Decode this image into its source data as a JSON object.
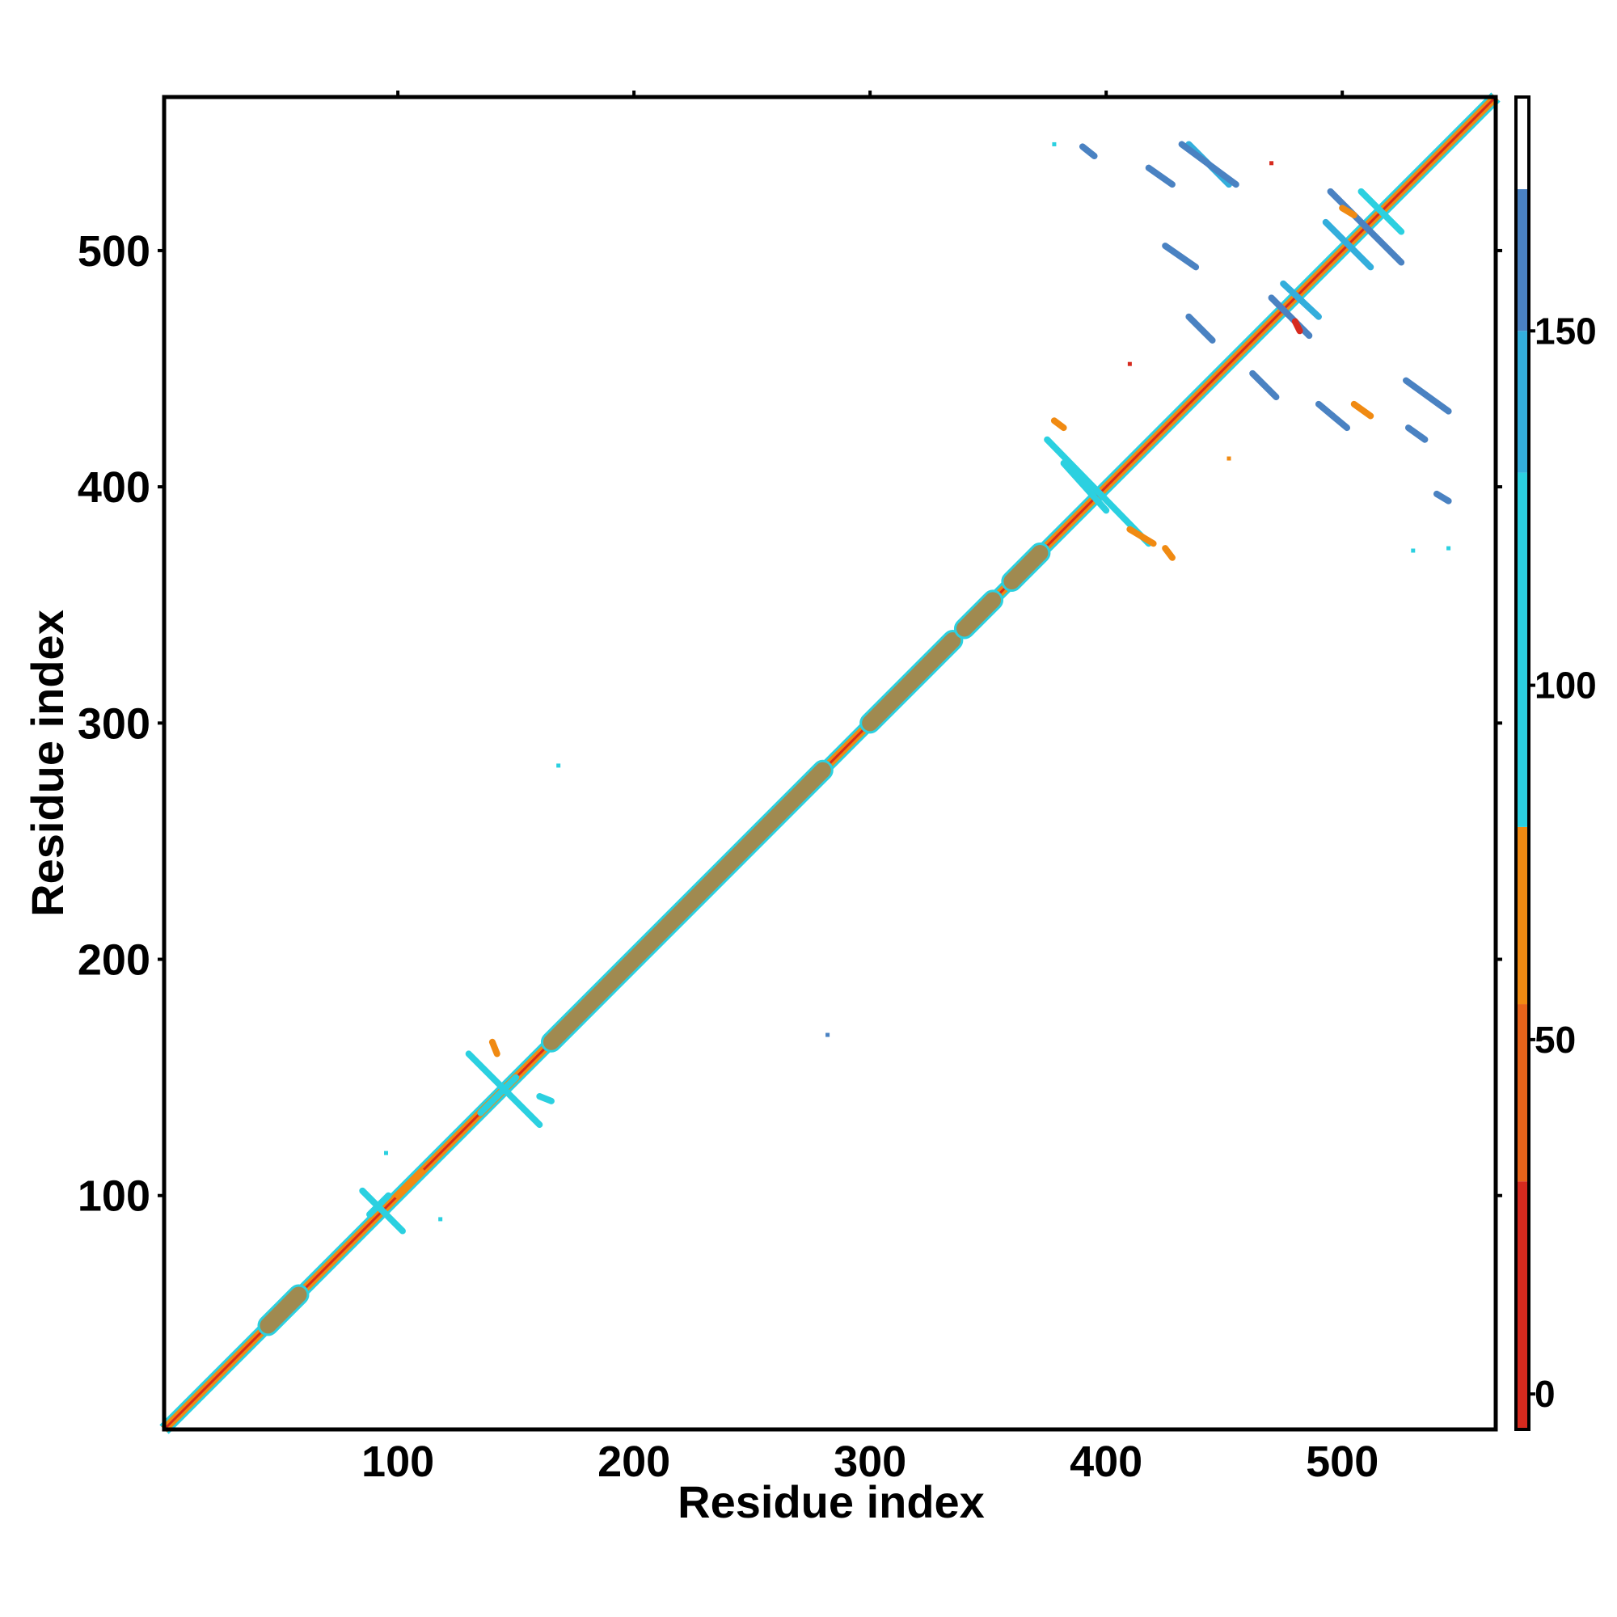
{
  "chart_data": {
    "type": "heatmap",
    "xlabel": "Residue index",
    "ylabel": "Residue index",
    "xlim": [
      1,
      565
    ],
    "ylim": [
      1,
      565
    ],
    "x_ticks": [
      100,
      200,
      300,
      400,
      500
    ],
    "y_ticks": [
      100,
      200,
      300,
      400,
      500
    ],
    "grid": false,
    "colorbar": {
      "range": [
        -5,
        183
      ],
      "ticks": [
        0,
        50,
        100,
        150
      ],
      "bands": [
        {
          "from": -5,
          "to": 30,
          "color": "#d62a1e"
        },
        {
          "from": 30,
          "to": 55,
          "color": "#e8641a"
        },
        {
          "from": 55,
          "to": 80,
          "color": "#f08a12"
        },
        {
          "from": 80,
          "to": 130,
          "color": "#2bd0e0"
        },
        {
          "from": 130,
          "to": 150,
          "color": "#33aedc"
        },
        {
          "from": 150,
          "to": 170,
          "color": "#4a82c2"
        },
        {
          "from": 170,
          "to": 183,
          "color": "#ffffff"
        }
      ]
    },
    "diagonal_band": {
      "from": 1,
      "to": 565,
      "color": "#f08a12",
      "edge_color": "#2bd0e0",
      "core_color": "#d62a1e"
    },
    "dense_helix_segments": [
      {
        "from": 45,
        "to": 58,
        "color": "#a08a50"
      },
      {
        "from": 165,
        "to": 280,
        "color": "#a08a50"
      },
      {
        "from": 300,
        "to": 335,
        "color": "#a08a50"
      },
      {
        "from": 340,
        "to": 352,
        "color": "#a08a50"
      },
      {
        "from": 360,
        "to": 372,
        "color": "#a08a50"
      }
    ],
    "contact_segments": [
      {
        "x1": 85,
        "y1": 102,
        "x2": 102,
        "y2": 85,
        "color": "#2bd0e0"
      },
      {
        "x1": 88,
        "y1": 92,
        "x2": 96,
        "y2": 100,
        "color": "#2bd0e0"
      },
      {
        "x1": 100,
        "y1": 100,
        "x2": 110,
        "y2": 110,
        "color": "#f08a12"
      },
      {
        "x1": 130,
        "y1": 160,
        "x2": 160,
        "y2": 130,
        "color": "#2bd0e0"
      },
      {
        "x1": 135,
        "y1": 135,
        "x2": 150,
        "y2": 150,
        "color": "#2bd0e0"
      },
      {
        "x1": 140,
        "y1": 165,
        "x2": 142,
        "y2": 160,
        "color": "#f08a12"
      },
      {
        "x1": 160,
        "y1": 142,
        "x2": 165,
        "y2": 140,
        "color": "#2bd0e0"
      },
      {
        "x1": 375,
        "y1": 420,
        "x2": 418,
        "y2": 376,
        "color": "#2bd0e0"
      },
      {
        "x1": 382,
        "y1": 410,
        "x2": 400,
        "y2": 390,
        "color": "#2bd0e0"
      },
      {
        "x1": 410,
        "y1": 382,
        "x2": 420,
        "y2": 376,
        "color": "#f08a12"
      },
      {
        "x1": 378,
        "y1": 428,
        "x2": 382,
        "y2": 425,
        "color": "#f08a12"
      },
      {
        "x1": 425,
        "y1": 374,
        "x2": 428,
        "y2": 370,
        "color": "#f08a12"
      },
      {
        "x1": 435,
        "y1": 472,
        "x2": 445,
        "y2": 462,
        "color": "#4a82c2"
      },
      {
        "x1": 435,
        "y1": 545,
        "x2": 452,
        "y2": 528,
        "color": "#33aedc"
      },
      {
        "x1": 432,
        "y1": 545,
        "x2": 455,
        "y2": 528,
        "color": "#4a82c2"
      },
      {
        "x1": 418,
        "y1": 535,
        "x2": 428,
        "y2": 528,
        "color": "#4a82c2"
      },
      {
        "x1": 390,
        "y1": 544,
        "x2": 395,
        "y2": 540,
        "color": "#4a82c2"
      },
      {
        "x1": 425,
        "y1": 502,
        "x2": 438,
        "y2": 493,
        "color": "#4a82c2"
      },
      {
        "x1": 470,
        "y1": 480,
        "x2": 486,
        "y2": 464,
        "color": "#4a82c2"
      },
      {
        "x1": 475,
        "y1": 486,
        "x2": 490,
        "y2": 472,
        "color": "#33aedc"
      },
      {
        "x1": 462,
        "y1": 448,
        "x2": 472,
        "y2": 438,
        "color": "#4a82c2"
      },
      {
        "x1": 495,
        "y1": 525,
        "x2": 525,
        "y2": 495,
        "color": "#4a82c2"
      },
      {
        "x1": 493,
        "y1": 512,
        "x2": 512,
        "y2": 493,
        "color": "#33aedc"
      },
      {
        "x1": 508,
        "y1": 525,
        "x2": 525,
        "y2": 508,
        "color": "#2bd0e0"
      },
      {
        "x1": 490,
        "y1": 435,
        "x2": 502,
        "y2": 425,
        "color": "#4a82c2"
      },
      {
        "x1": 527,
        "y1": 445,
        "x2": 545,
        "y2": 432,
        "color": "#4a82c2"
      },
      {
        "x1": 528,
        "y1": 425,
        "x2": 535,
        "y2": 420,
        "color": "#4a82c2"
      },
      {
        "x1": 540,
        "y1": 397,
        "x2": 545,
        "y2": 394,
        "color": "#4a82c2"
      },
      {
        "x1": 505,
        "y1": 435,
        "x2": 512,
        "y2": 430,
        "color": "#f08a12"
      },
      {
        "x1": 500,
        "y1": 518,
        "x2": 505,
        "y2": 515,
        "color": "#f08a12"
      },
      {
        "x1": 480,
        "y1": 470,
        "x2": 482,
        "y2": 466,
        "color": "#d62a1e"
      }
    ],
    "isolated_points": [
      {
        "x": 168,
        "y": 282,
        "color": "#2bd0e0"
      },
      {
        "x": 282,
        "y": 168,
        "color": "#4a82c2"
      },
      {
        "x": 118,
        "y": 90,
        "color": "#2bd0e0"
      },
      {
        "x": 95,
        "y": 118,
        "color": "#2bd0e0"
      },
      {
        "x": 452,
        "y": 412,
        "color": "#f08a12"
      },
      {
        "x": 410,
        "y": 452,
        "color": "#d62a1e"
      },
      {
        "x": 378,
        "y": 545,
        "color": "#2bd0e0"
      },
      {
        "x": 545,
        "y": 374,
        "color": "#2bd0e0"
      },
      {
        "x": 530,
        "y": 373,
        "color": "#2bd0e0"
      },
      {
        "x": 470,
        "y": 537,
        "color": "#d62a1e"
      }
    ]
  }
}
